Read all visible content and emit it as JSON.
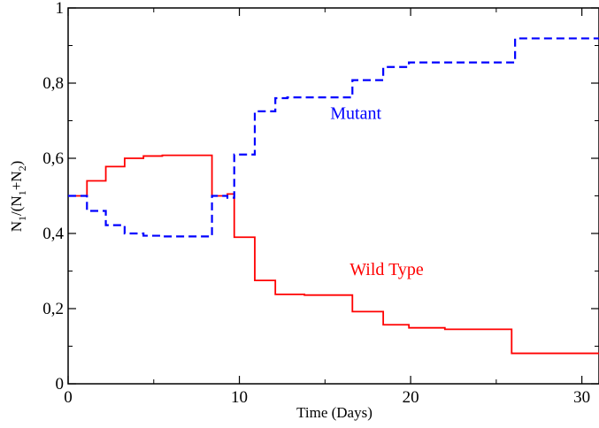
{
  "chart_data": {
    "type": "line",
    "xlabel": "Time (Days)",
    "ylabel": {
      "parts": [
        "N",
        "1",
        "/(N",
        "1",
        "+N",
        "2",
        ")"
      ]
    },
    "xlim": [
      0,
      31
    ],
    "ylim": [
      0,
      1
    ],
    "x_ticks": [
      {
        "value": 0,
        "label": "0"
      },
      {
        "value": 10,
        "label": "10"
      },
      {
        "value": 20,
        "label": "20"
      },
      {
        "value": 30,
        "label": "30"
      }
    ],
    "y_ticks": [
      {
        "value": 0,
        "label": "0"
      },
      {
        "value": 0.2,
        "label": "0,2"
      },
      {
        "value": 0.4,
        "label": "0,4"
      },
      {
        "value": 0.6,
        "label": "0,6"
      },
      {
        "value": 0.8,
        "label": "0,8"
      },
      {
        "value": 1,
        "label": "1"
      }
    ],
    "grid": false,
    "series": [
      {
        "name": "Wild Type",
        "color": "#ff0000",
        "line_style": "solid",
        "x": [
          0,
          1.1,
          1.1,
          2.2,
          2.2,
          3.3,
          3.3,
          4.4,
          4.4,
          5.5,
          5.5,
          8.4,
          8.4,
          9.3,
          9.3,
          9.7,
          9.7,
          10.9,
          10.9,
          12.1,
          12.1,
          13.8,
          13.8,
          16.6,
          16.6,
          18.4,
          18.4,
          19.9,
          19.9,
          22,
          22,
          25.9,
          25.9,
          31
        ],
        "y": [
          0.5,
          0.5,
          0.54,
          0.54,
          0.578,
          0.578,
          0.6,
          0.6,
          0.606,
          0.606,
          0.608,
          0.608,
          0.5,
          0.5,
          0.505,
          0.505,
          0.39,
          0.39,
          0.275,
          0.275,
          0.238,
          0.238,
          0.236,
          0.236,
          0.192,
          0.192,
          0.157,
          0.157,
          0.149,
          0.149,
          0.145,
          0.145,
          0.081,
          0.081
        ]
      },
      {
        "name": "Mutant",
        "color": "#0000ff",
        "line_style": "dashed",
        "x": [
          0,
          1.1,
          1.1,
          2.2,
          2.2,
          3.3,
          3.3,
          4.4,
          4.4,
          5.5,
          5.5,
          8.4,
          8.4,
          9.3,
          9.3,
          9.7,
          9.7,
          10.9,
          10.9,
          12.1,
          12.1,
          12.8,
          12.8,
          16.6,
          16.6,
          18.4,
          18.4,
          19.9,
          19.9,
          26.1,
          26.1,
          31
        ],
        "y": [
          0.5,
          0.5,
          0.46,
          0.46,
          0.422,
          0.422,
          0.4,
          0.4,
          0.394,
          0.394,
          0.392,
          0.392,
          0.5,
          0.5,
          0.495,
          0.495,
          0.61,
          0.61,
          0.725,
          0.725,
          0.76,
          0.76,
          0.762,
          0.762,
          0.808,
          0.808,
          0.843,
          0.843,
          0.855,
          0.855,
          0.919,
          0.919
        ]
      }
    ],
    "annotations": [
      {
        "id": "mutant",
        "text": "Mutant",
        "x": 16.8,
        "y": 0.705,
        "color": "#0000ff"
      },
      {
        "id": "wild",
        "text": "Wild Type",
        "x": 18.6,
        "y": 0.29,
        "color": "#ff0000"
      }
    ]
  }
}
